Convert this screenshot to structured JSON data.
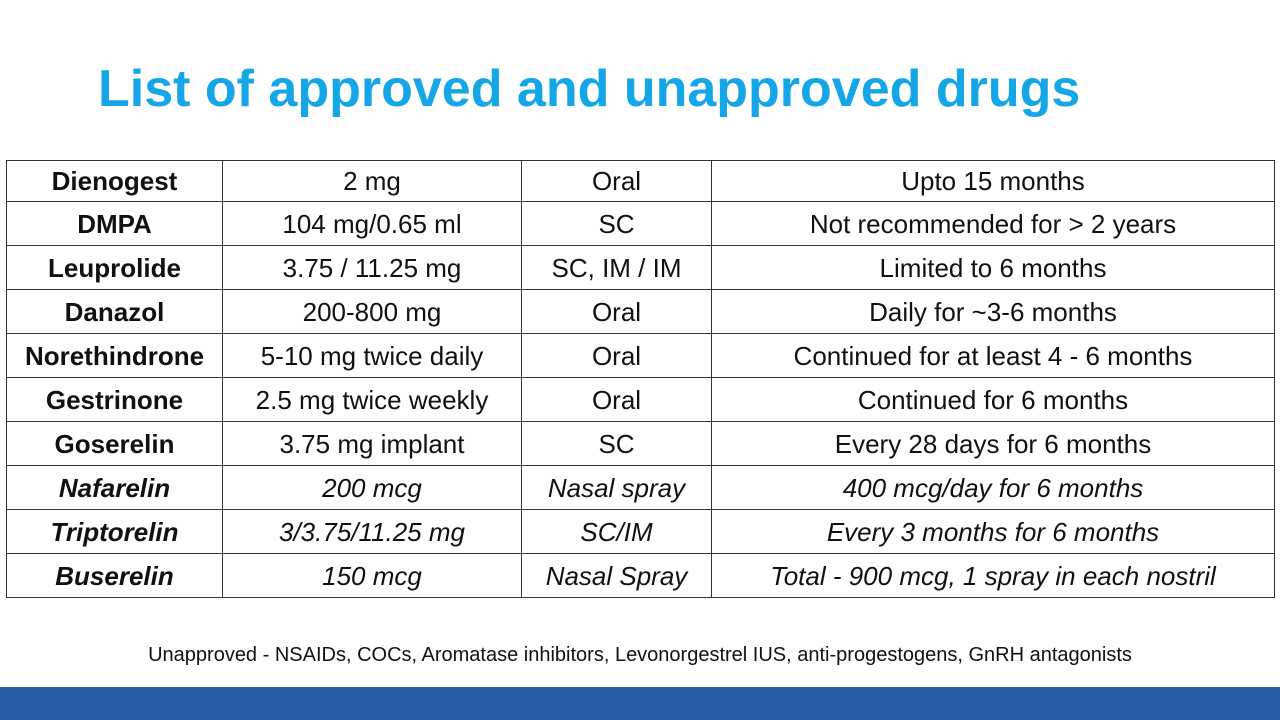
{
  "slide": {
    "title": "List of approved and unapproved drugs",
    "footnote": "Unapproved - NSAIDs, COCs, Aromatase inhibitors, Levonorgestrel IUS, anti-progestogens, GnRH antagonists"
  },
  "table": {
    "rows": [
      {
        "drug": "Dienogest",
        "dose": "2 mg",
        "route": "Oral",
        "duration": "Upto 15 months"
      },
      {
        "drug": "DMPA",
        "dose": "104 mg/0.65 ml",
        "route": "SC",
        "duration": "Not recommended for > 2 years"
      },
      {
        "drug": "Leuprolide",
        "dose": "3.75 / 11.25 mg",
        "route": "SC, IM / IM",
        "duration": "Limited to 6 months"
      },
      {
        "drug": "Danazol",
        "dose": "200-800 mg",
        "route": "Oral",
        "duration": "Daily for ~3-6 months"
      },
      {
        "drug": "Norethindrone",
        "dose": "5-10 mg twice daily",
        "route": "Oral",
        "duration": "Continued for at least 4 - 6 months"
      },
      {
        "drug": "Gestrinone",
        "dose": "2.5 mg twice weekly",
        "route": "Oral",
        "duration": "Continued for 6 months"
      },
      {
        "drug": "Goserelin",
        "dose": "3.75 mg implant",
        "route": "SC",
        "duration": "Every 28 days for 6 months"
      },
      {
        "drug": "Nafarelin",
        "dose": "200 mcg",
        "route": "Nasal spray",
        "duration": "400 mcg/day for 6 months"
      },
      {
        "drug": "Triptorelin",
        "dose": "3/3.75/11.25 mg",
        "route": "SC/IM",
        "duration": "Every 3 months for 6 months"
      },
      {
        "drug": "Buserelin",
        "dose": "150 mcg",
        "route": "Nasal Spray",
        "duration": "Total - 900 mcg, 1 spray in each nostril"
      }
    ]
  },
  "colors": {
    "title": "#14a6e6",
    "bottom_bar": "#2a5ca3",
    "border": "#333333"
  }
}
